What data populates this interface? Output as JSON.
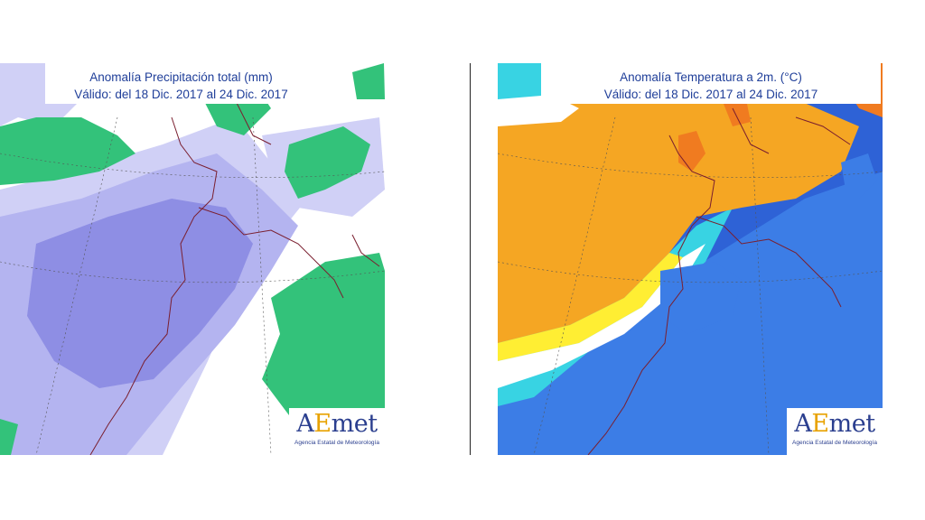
{
  "maps": [
    {
      "title_line1": "Anomalía Precipitación total (mm)",
      "title_line2": "Válido: del 18 Dic. 2017 al 24 Dic. 2017",
      "variable": "precipitation anomaly",
      "colors": {
        "strong_wet": "#8e8ee4",
        "mild_wet": "#b4b4f0",
        "light_wet": "#d0d0f6",
        "dry": "#33c27a",
        "neutral": "#ffffff"
      }
    },
    {
      "title_line1": "Anomalía Temperatura a 2m. (°C)",
      "title_line2": "Válido: del 18 Dic. 2017 al 24 Dic. 2017",
      "variable": "temperature anomaly",
      "colors": {
        "warm_strong": "#f07b20",
        "warm": "#f5a623",
        "slight_warm": "#ffee33",
        "slight_cold": "#38d3e3",
        "cold": "#3c7de6",
        "cold_strong": "#2e62d6",
        "neutral": "#ffffff"
      }
    }
  ],
  "logo": {
    "brand": "AEmet",
    "brand_prefix": "A",
    "brand_highlight": "E",
    "brand_suffix": "met",
    "subtitle": "Agencia Estatal de Meteorología"
  }
}
